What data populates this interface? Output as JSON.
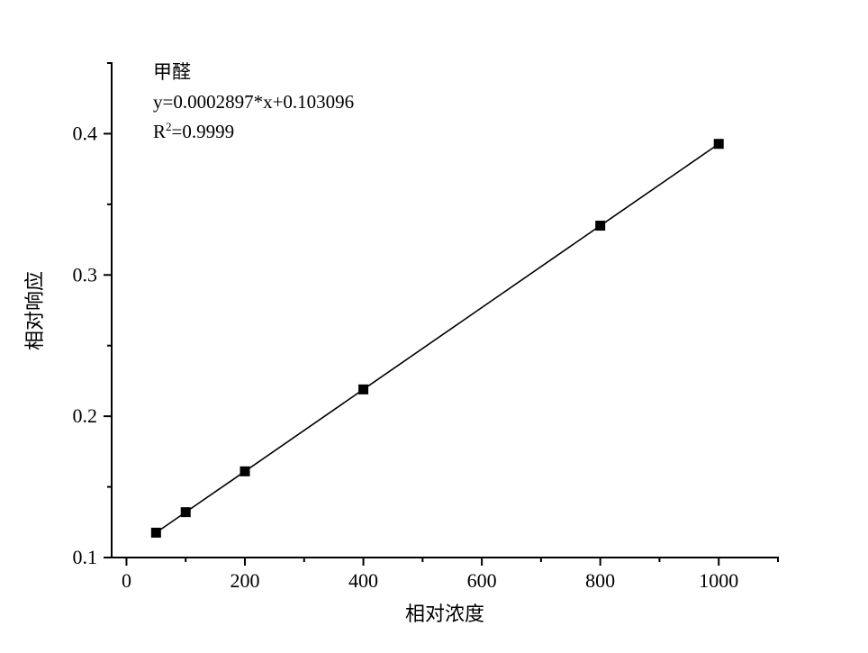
{
  "figure": {
    "background_color": "#ffffff",
    "ink_color": "#000000"
  },
  "annotation": {
    "title": "甲醛",
    "equation": "y=0.0002897*x+0.103096",
    "r2_base": "R",
    "r2_sup": "2",
    "r2_rest": "=0.9999"
  },
  "chart_data": {
    "type": "scatter",
    "title": "甲醛",
    "xlabel": "相对浓度",
    "ylabel": "相对响应",
    "x": [
      50,
      100,
      200,
      400,
      800,
      1000
    ],
    "y": [
      0.1176,
      0.1321,
      0.161,
      0.219,
      0.3349,
      0.3928
    ],
    "fit": {
      "equation": "y=0.0002897*x+0.103096",
      "slope": 0.0002897,
      "intercept": 0.103096,
      "r_squared": 0.9999
    },
    "xlim": [
      -25,
      1100
    ],
    "ylim": [
      0.1,
      0.45
    ],
    "x_major_ticks": [
      0,
      200,
      400,
      600,
      800,
      1000
    ],
    "x_minor_ticks": [
      100,
      300,
      500,
      700,
      900,
      1100
    ],
    "y_major_ticks": [
      0.1,
      0.2,
      0.3,
      0.4
    ],
    "y_minor_ticks": [
      0.15,
      0.25,
      0.35,
      0.45
    ],
    "grid": false,
    "legend": "none",
    "line_style": "solid",
    "line_color": "#000000",
    "marker": "square-filled",
    "marker_color": "#000000",
    "marker_size_px": 11
  }
}
